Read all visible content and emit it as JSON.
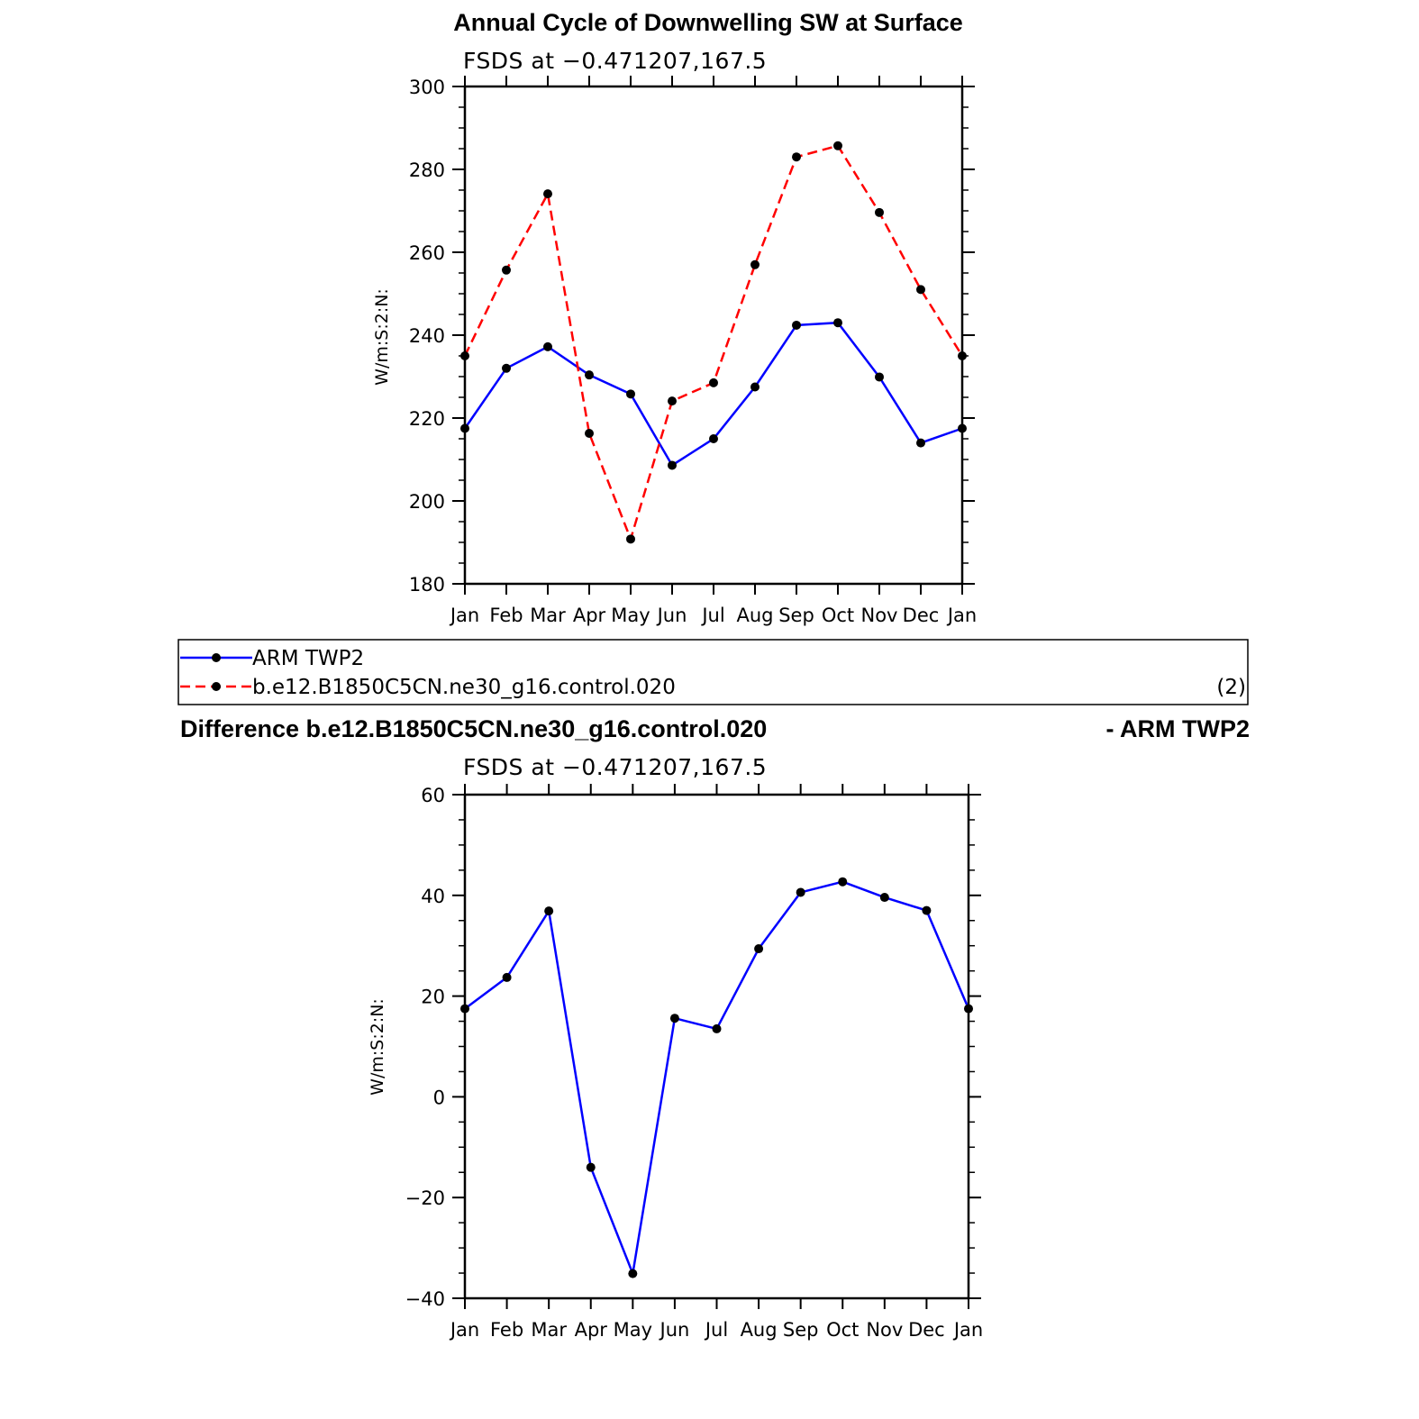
{
  "chart_data": [
    {
      "type": "line",
      "title": "Annual Cycle of Downwelling SW at Surface",
      "subtitle": "FSDS at −0.471207,167.5",
      "xlabel": "",
      "ylabel": "W/m:S:2:N:",
      "categories": [
        "Jan",
        "Feb",
        "Mar",
        "Apr",
        "May",
        "Jun",
        "Jul",
        "Aug",
        "Sep",
        "Oct",
        "Nov",
        "Dec",
        "Jan"
      ],
      "ylim": [
        180,
        300
      ],
      "yticks": [
        "180",
        "200",
        "220",
        "240",
        "260",
        "280",
        "300"
      ],
      "series": [
        {
          "name": "ARM TWP2",
          "color": "#0000ff",
          "dash": "solid",
          "values": [
            217.5,
            232,
            237.2,
            230.4,
            225.8,
            208.6,
            215,
            227.5,
            242.4,
            243,
            229.9,
            214,
            217.5
          ]
        },
        {
          "name": "b.e12.B1850C5CN.ne30_g16.control.020",
          "color": "#ff0000",
          "dash": "dashed",
          "values": [
            235,
            255.7,
            274.1,
            216.3,
            190.8,
            224.1,
            228.5,
            257,
            283,
            285.7,
            269.6,
            251,
            235
          ]
        }
      ]
    },
    {
      "type": "line",
      "title": "Difference b.e12.B1850C5CN.ne30_g16.control.020",
      "title_right": "- ARM TWP2",
      "subtitle": "FSDS at −0.471207,167.5",
      "xlabel": "",
      "ylabel": "W/m:S:2:N:",
      "categories": [
        "Jan",
        "Feb",
        "Mar",
        "Apr",
        "May",
        "Jun",
        "Jul",
        "Aug",
        "Sep",
        "Oct",
        "Nov",
        "Dec",
        "Jan"
      ],
      "ylim": [
        -40,
        60
      ],
      "yticks": [
        "−40",
        "−20",
        "0",
        "20",
        "40",
        "60"
      ],
      "series": [
        {
          "color": "#0000ff",
          "dash": "solid",
          "values": [
            17.5,
            23.7,
            36.9,
            -14,
            -35.1,
            15.6,
            13.5,
            29.4,
            40.6,
            42.7,
            39.6,
            37,
            17.5
          ]
        }
      ]
    }
  ],
  "legend": {
    "items": [
      "ARM TWP2",
      "b.e12.B1850C5CN.ne30_g16.control.020"
    ],
    "note": "(2)"
  }
}
